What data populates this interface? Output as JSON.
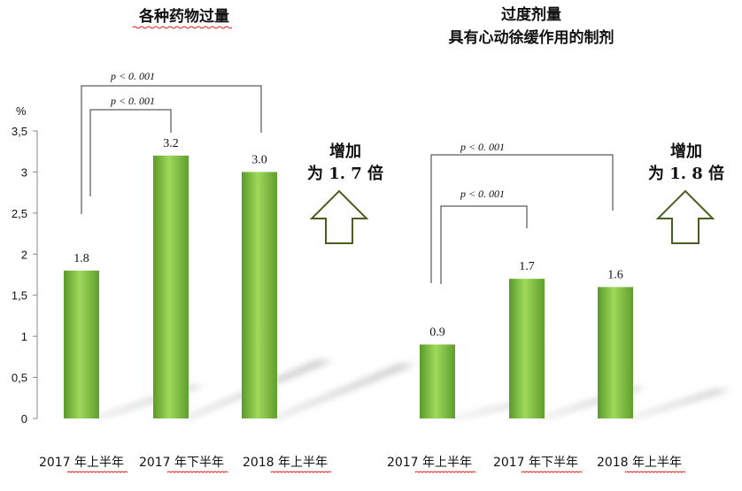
{
  "chart_data": [
    {
      "type": "bar",
      "title": "各种药物过量",
      "subtitle": "",
      "ylabel": "%",
      "ylim": [
        0,
        3.5
      ],
      "yticks": [
        "0",
        "0,5",
        "1",
        "1,5",
        "2",
        "2,5",
        "3",
        "3,5"
      ],
      "categories": [
        "2017 年上半年",
        "2017 年下半年",
        "2018 年上半年"
      ],
      "values": [
        1.8,
        3.2,
        3.0
      ],
      "value_labels": [
        "1.8",
        "3.2",
        "3.0"
      ],
      "bar_color": "#7dc242",
      "comparisons": [
        {
          "label": "p < 0. 001",
          "from": 0,
          "to": 1
        },
        {
          "label": "p < 0. 001",
          "from": 0,
          "to": 2
        }
      ],
      "annotation": {
        "line1": "增加",
        "line2": "为 1. 7 倍",
        "arrow": "up-arrow-outline"
      }
    },
    {
      "type": "bar",
      "title": "过度剂量",
      "subtitle": "具有心动徐缓作用的制剂",
      "ylabel": "",
      "ylim": [
        0,
        3.5
      ],
      "categories": [
        "2017 年上半年",
        "2017 年下半年",
        "2018 年上半年"
      ],
      "values": [
        0.9,
        1.7,
        1.6
      ],
      "value_labels": [
        "0.9",
        "1.7",
        "1.6"
      ],
      "bar_color": "#7dc242",
      "comparisons": [
        {
          "label": "p < 0. 001",
          "from": 0,
          "to": 1
        },
        {
          "label": "p < 0. 001",
          "from": 0,
          "to": 2
        }
      ],
      "annotation": {
        "line1": "增加",
        "line2": "为 1. 8 倍",
        "arrow": "up-arrow-outline"
      }
    }
  ],
  "colors": {
    "bar": "#7dc242",
    "arrow_stroke": "#4a5e20",
    "axis": "#888888"
  }
}
